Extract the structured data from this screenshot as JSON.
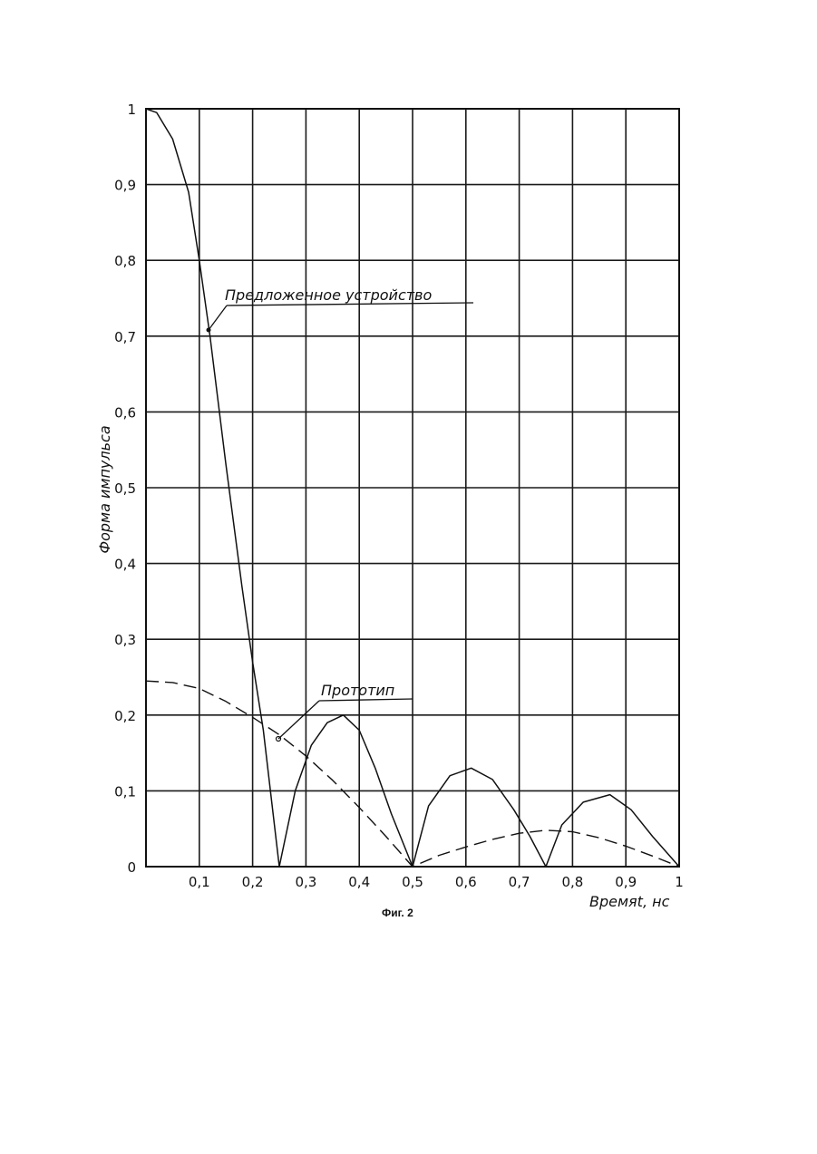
{
  "caption": "Фиг. 2",
  "chart_data": {
    "type": "line",
    "xlabel": "Времяt, нс",
    "ylabel": "Форма импульса",
    "xlim": [
      0,
      1
    ],
    "ylim": [
      0,
      1
    ],
    "x_ticks": [
      "0,1",
      "0,2",
      "0,3",
      "0,4",
      "0,5",
      "0,6",
      "0,7",
      "0,8",
      "0,9",
      "1"
    ],
    "y_ticks": [
      "0",
      "0,1",
      "0,2",
      "0,3",
      "0,4",
      "0,5",
      "0,6",
      "0,7",
      "0,8",
      "0,9",
      "1"
    ],
    "grid": true,
    "series": [
      {
        "name": "Предложенное устройство",
        "style": "solid",
        "color": "#111111",
        "x": [
          0,
          0.02,
          0.05,
          0.08,
          0.1,
          0.12,
          0.15,
          0.18,
          0.2,
          0.22,
          0.25,
          0.28,
          0.31,
          0.34,
          0.37,
          0.4,
          0.43,
          0.46,
          0.5,
          0.53,
          0.57,
          0.61,
          0.65,
          0.69,
          0.72,
          0.75,
          0.78,
          0.82,
          0.87,
          0.91,
          0.95,
          1.0
        ],
        "y": [
          1.0,
          0.995,
          0.96,
          0.89,
          0.8,
          0.7,
          0.53,
          0.37,
          0.27,
          0.18,
          0.0,
          0.1,
          0.16,
          0.19,
          0.2,
          0.18,
          0.13,
          0.07,
          0.0,
          0.08,
          0.12,
          0.13,
          0.115,
          0.075,
          0.04,
          0.0,
          0.055,
          0.085,
          0.095,
          0.075,
          0.04,
          0.0
        ]
      },
      {
        "name": "Прототип",
        "style": "dashed",
        "color": "#111111",
        "x": [
          0,
          0.05,
          0.1,
          0.15,
          0.2,
          0.25,
          0.3,
          0.35,
          0.4,
          0.45,
          0.5,
          0.55,
          0.6,
          0.65,
          0.7,
          0.75,
          0.8,
          0.85,
          0.9,
          0.95,
          1.0
        ],
        "y": [
          0.245,
          0.243,
          0.235,
          0.218,
          0.197,
          0.174,
          0.146,
          0.114,
          0.078,
          0.04,
          0.0,
          0.015,
          0.026,
          0.036,
          0.044,
          0.048,
          0.046,
          0.038,
          0.027,
          0.014,
          0.0
        ]
      }
    ]
  }
}
